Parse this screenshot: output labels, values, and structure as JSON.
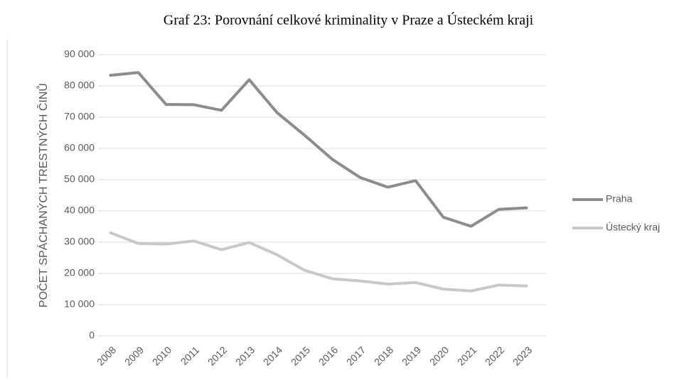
{
  "chart_data": {
    "type": "line",
    "title": "Graf 23: Porovnání celkové kriminality v Praze a Ústeckém kraji",
    "y_label": "POČET SPÁCHANÝCH TRESTNÝCH ČINŮ",
    "categories": [
      "2008",
      "2009",
      "2010",
      "2011",
      "2012",
      "2013",
      "2014",
      "2015",
      "2016",
      "2017",
      "2018",
      "2019",
      "2020",
      "2021",
      "2022",
      "2023"
    ],
    "series": [
      {
        "name": "Praha",
        "color": "#8c8c8c",
        "values": [
          83400,
          84300,
          74100,
          74000,
          72200,
          82000,
          71500,
          64200,
          56500,
          50700,
          47600,
          49700,
          38000,
          35100,
          40500,
          41000
        ]
      },
      {
        "name": "Ústecký kraj",
        "color": "#c8c8c8",
        "values": [
          33000,
          29600,
          29400,
          30400,
          27600,
          29900,
          26000,
          21000,
          18300,
          17600,
          16600,
          17100,
          15000,
          14400,
          16300,
          16000
        ]
      }
    ],
    "ylim": [
      0,
      90000
    ],
    "yticks": [
      0,
      {
        "value": 10000,
        "label": "10 000"
      },
      {
        "value": 20000,
        "label": "20 000"
      },
      {
        "value": 30000,
        "label": "30 000"
      },
      {
        "value": 40000,
        "label": "40 000"
      },
      {
        "value": 50000,
        "label": "50 000"
      },
      {
        "value": 60000,
        "label": "60 000"
      },
      {
        "value": 70000,
        "label": "70 000"
      },
      {
        "value": 80000,
        "label": "80 000"
      },
      {
        "value": 90000,
        "label": "90 000"
      }
    ],
    "grid": true,
    "legend": "right"
  }
}
